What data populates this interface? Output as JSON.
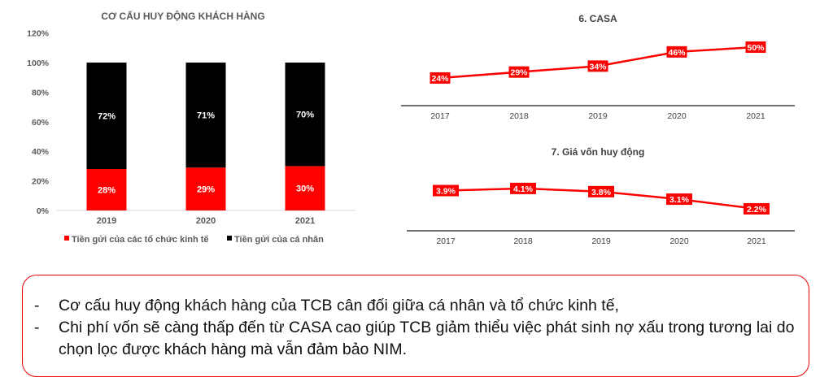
{
  "chart_data": [
    {
      "type": "bar",
      "stacked": true,
      "title": "CƠ CẤU HUY ĐỘNG KHÁCH HÀNG",
      "categories": [
        "2019",
        "2020",
        "2021"
      ],
      "series": [
        {
          "name": "Tiền gửi của các tổ chức kinh tế",
          "values": [
            28,
            29,
            30
          ],
          "labels": [
            "28%",
            "29%",
            "30%"
          ],
          "color": "#ff0000"
        },
        {
          "name": "Tiền gửi của cá nhân",
          "values": [
            72,
            71,
            70
          ],
          "labels": [
            "72%",
            "71%",
            "70%"
          ],
          "color": "#000000"
        }
      ],
      "yticks": [
        "0%",
        "20%",
        "40%",
        "60%",
        "80%",
        "100%",
        "120%"
      ],
      "ylim": [
        0,
        120
      ],
      "legend": "bottom"
    },
    {
      "type": "line",
      "title": "6. CASA",
      "categories": [
        "2017",
        "2018",
        "2019",
        "2020",
        "2021"
      ],
      "values": [
        24,
        29,
        34,
        46,
        50
      ],
      "labels": [
        "24%",
        "29%",
        "34%",
        "46%",
        "50%"
      ],
      "color": "#ff0000",
      "ylim": [
        0,
        55
      ]
    },
    {
      "type": "line",
      "title": "7. Giá vốn huy động",
      "categories": [
        "2017",
        "2018",
        "2019",
        "2020",
        "2021"
      ],
      "values": [
        3.9,
        4.1,
        3.8,
        3.1,
        2.2
      ],
      "labels": [
        "3.9%",
        "4.1%",
        "3.8%",
        "3.1%",
        "2.2%"
      ],
      "color": "#ff0000",
      "ylim": [
        0,
        5
      ]
    }
  ],
  "note": {
    "bullets": [
      {
        "dash": "-",
        "text": "Cơ cấu huy động khách hàng của TCB cân đối giữa cá nhân và tổ chức kinh tế,"
      },
      {
        "dash": "-",
        "text": "Chi phí vốn sẽ càng thấp đến từ CASA cao giúp TCB giảm thiểu việc phát sinh nợ xấu trong tương lai do chọn lọc được khách hàng mà vẫn đảm bảo NIM."
      }
    ]
  }
}
